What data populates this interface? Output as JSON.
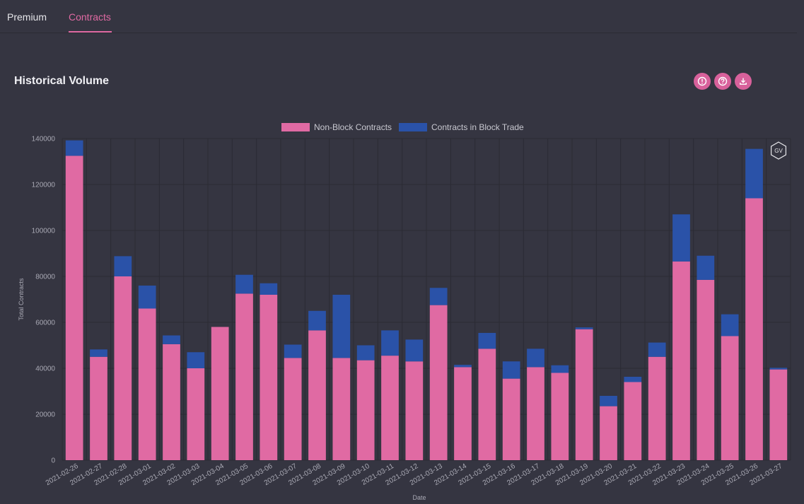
{
  "tabs": [
    {
      "label": "Premium"
    },
    {
      "label": "Contracts"
    }
  ],
  "section": {
    "title": "Historical Volume"
  },
  "toolbar": {
    "icons": [
      "info-icon",
      "help-icon",
      "download-icon"
    ]
  },
  "logo": {
    "text": "GV"
  },
  "colors": {
    "non_block": "#e06aa3",
    "block": "#2a52a8",
    "accent": "#e06aa3"
  },
  "chart_data": {
    "type": "bar",
    "stacked": true,
    "xlabel": "Date",
    "ylabel": "Total Contracts",
    "ylim": [
      0,
      140000
    ],
    "yticks": [
      0,
      20000,
      40000,
      60000,
      80000,
      100000,
      120000,
      140000
    ],
    "grid": true,
    "legend_position": "top",
    "categories": [
      "2021-02-26",
      "2021-02-27",
      "2021-02-28",
      "2021-03-01",
      "2021-03-02",
      "2021-03-03",
      "2021-03-04",
      "2021-03-05",
      "2021-03-06",
      "2021-03-07",
      "2021-03-08",
      "2021-03-09",
      "2021-03-10",
      "2021-03-11",
      "2021-03-12",
      "2021-03-13",
      "2021-03-14",
      "2021-03-15",
      "2021-03-16",
      "2021-03-17",
      "2021-03-18",
      "2021-03-19",
      "2021-03-20",
      "2021-03-21",
      "2021-03-22",
      "2021-03-23",
      "2021-03-24",
      "2021-03-25",
      "2021-03-26",
      "2021-03-27"
    ],
    "series": [
      {
        "name": "Non-Block Contracts",
        "values": [
          132500,
          45000,
          80000,
          66000,
          50500,
          40000,
          58000,
          72500,
          72000,
          44500,
          56500,
          44500,
          43500,
          45500,
          43000,
          67500,
          40500,
          48500,
          35500,
          40500,
          38000,
          57000,
          23500,
          34000,
          45000,
          86500,
          78500,
          54000,
          114000,
          39500
        ]
      },
      {
        "name": "Contracts in Block Trade",
        "values": [
          6700,
          3200,
          8800,
          10000,
          3800,
          7000,
          0,
          8200,
          5000,
          5800,
          8500,
          27500,
          6500,
          11000,
          9500,
          7500,
          1000,
          6900,
          7500,
          8000,
          3300,
          800,
          4500,
          2300,
          6200,
          20500,
          10500,
          9500,
          21500,
          700
        ]
      }
    ]
  }
}
